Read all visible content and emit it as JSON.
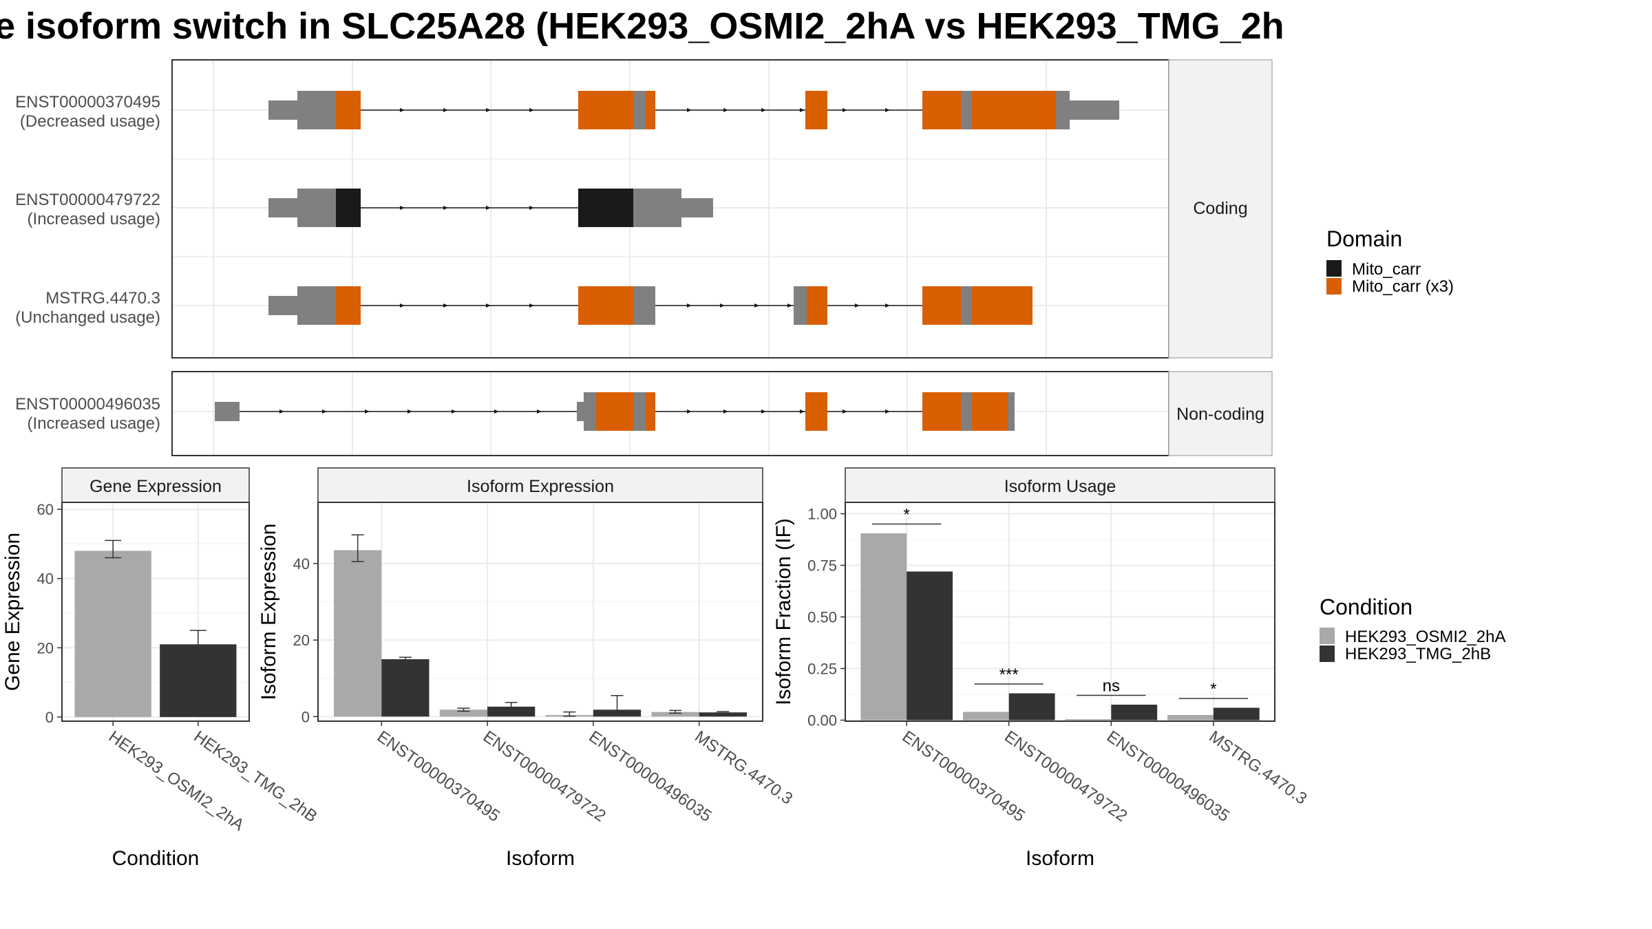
{
  "title": "e isoform switch in SLC25A28 (HEK293_OSMI2_2hA vs HEK293_TMG_2h",
  "structure": {
    "strip_coding": "Coding",
    "strip_noncoding": "Non-coding",
    "domain_legend_title": "Domain",
    "domain_legend": [
      {
        "label": "Mito_carr",
        "color": "#1a1a1a"
      },
      {
        "label": "Mito_carr (x3)",
        "color": "#d95f02"
      }
    ],
    "transcripts": [
      {
        "id": "ENST00000370495",
        "usage": "(Decreased usage)",
        "group": "coding"
      },
      {
        "id": "ENST00000479722",
        "usage": "(Increased usage)",
        "group": "coding"
      },
      {
        "id": "MSTRG.4470.3",
        "usage": "(Unchanged usage)",
        "group": "coding"
      },
      {
        "id": "ENST00000496035",
        "usage": "(Increased usage)",
        "group": "noncoding"
      }
    ],
    "colors": {
      "utr": "#808080",
      "mito_carr": "#1a1a1a",
      "mito_carr_x3": "#d95f02"
    }
  },
  "condition_legend": {
    "title": "Condition",
    "items": [
      {
        "label": "HEK293_OSMI2_2hA",
        "color": "#a9a9a9"
      },
      {
        "label": "HEK293_TMG_2hB",
        "color": "#333333"
      }
    ]
  },
  "chart_data": [
    {
      "type": "bar",
      "title": "Gene Expression",
      "xlabel": "Condition",
      "ylabel": "Gene Expression",
      "ylim": [
        0,
        62
      ],
      "yticks": [
        0,
        20,
        40,
        60
      ],
      "categories": [
        "HEK293_OSMI2_2hA",
        "HEK293_TMG_2hB"
      ],
      "values": [
        48,
        21
      ],
      "error_low": [
        46,
        17
      ],
      "error_high": [
        51,
        25
      ]
    },
    {
      "type": "bar",
      "title": "Isoform Expression",
      "xlabel": "Isoform",
      "ylabel": "Isoform Expression",
      "ylim": [
        0,
        56
      ],
      "yticks": [
        0,
        20,
        40
      ],
      "categories": [
        "ENST00000370495",
        "ENST00000479722",
        "ENST00000496035",
        "MSTRG.4470.3"
      ],
      "series": [
        {
          "name": "HEK293_OSMI2_2hA",
          "values": [
            43.5,
            1.8,
            0.4,
            1.2
          ],
          "error_low": [
            40.5,
            1.4,
            0.1,
            0.9
          ],
          "error_high": [
            47.5,
            2.2,
            1.2,
            1.6
          ]
        },
        {
          "name": "HEK293_TMG_2hB",
          "values": [
            15,
            2.6,
            1.8,
            1.1
          ],
          "error_low": [
            14.5,
            1.9,
            0.2,
            0.9
          ],
          "error_high": [
            15.5,
            3.7,
            5.5,
            1.3
          ]
        }
      ]
    },
    {
      "type": "bar",
      "title": "Isoform Usage",
      "xlabel": "Isoform",
      "ylabel": "Isoform Fraction (IF)",
      "ylim": [
        0,
        1.0
      ],
      "yticks": [
        "0.00",
        "0.25",
        "0.50",
        "0.75",
        "1.00"
      ],
      "categories": [
        "ENST00000370495",
        "ENST00000479722",
        "ENST00000496035",
        "MSTRG.4470.3"
      ],
      "series": [
        {
          "name": "HEK293_OSMI2_2hA",
          "values": [
            0.905,
            0.04,
            0.005,
            0.025
          ]
        },
        {
          "name": "HEK293_TMG_2hB",
          "values": [
            0.72,
            0.13,
            0.075,
            0.06
          ]
        }
      ],
      "significance": [
        "*",
        "***",
        "ns",
        "*"
      ]
    }
  ]
}
